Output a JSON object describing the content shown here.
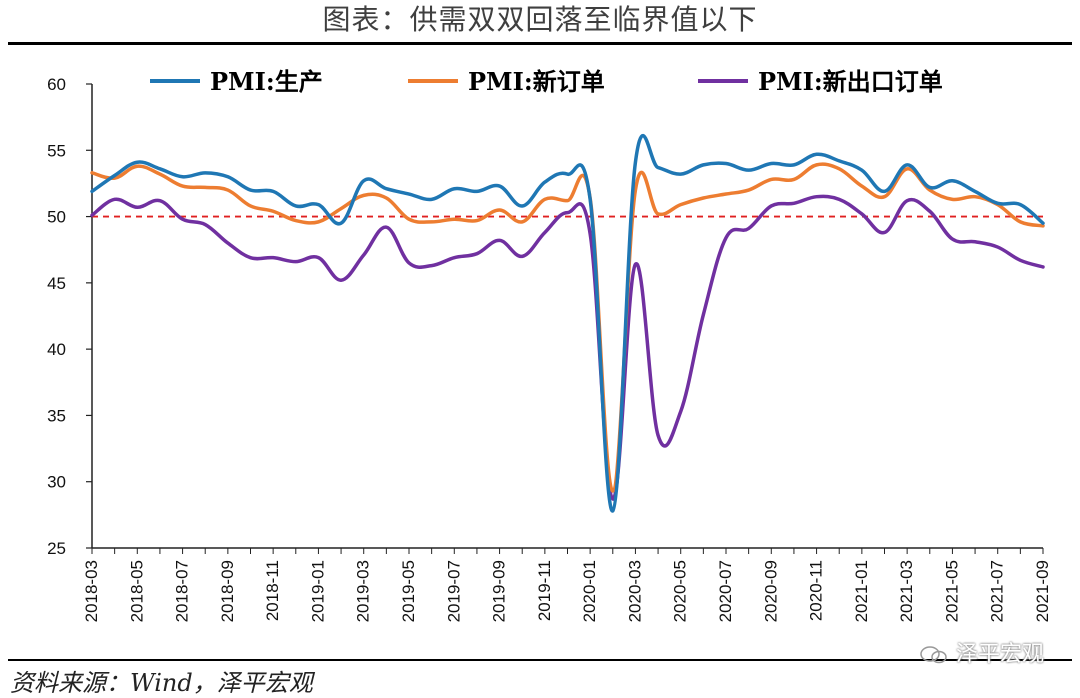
{
  "title": "图表：供需双双回落至临界值以下",
  "source": "资料来源：Wind，泽平宏观",
  "watermark": "泽平宏观",
  "chart_data": {
    "type": "line",
    "ylim": [
      25,
      60
    ],
    "yticks": [
      25,
      30,
      35,
      40,
      45,
      50,
      55,
      60
    ],
    "xtick_labels": [
      "2018-03",
      "2018-05",
      "2018-07",
      "2018-09",
      "2018-11",
      "2019-01",
      "2019-03",
      "2019-05",
      "2019-07",
      "2019-09",
      "2019-11",
      "2020-01",
      "2020-03",
      "2020-05",
      "2020-07",
      "2020-09",
      "2020-11",
      "2021-01",
      "2021-03",
      "2021-05",
      "2021-07",
      "2021-09"
    ],
    "x": [
      "2018-03",
      "2018-04",
      "2018-05",
      "2018-06",
      "2018-07",
      "2018-08",
      "2018-09",
      "2018-10",
      "2018-11",
      "2018-12",
      "2019-01",
      "2019-02",
      "2019-03",
      "2019-04",
      "2019-05",
      "2019-06",
      "2019-07",
      "2019-08",
      "2019-09",
      "2019-10",
      "2019-11",
      "2019-12",
      "2020-01",
      "2020-02",
      "2020-03",
      "2020-04",
      "2020-05",
      "2020-06",
      "2020-07",
      "2020-08",
      "2020-09",
      "2020-10",
      "2020-11",
      "2020-12",
      "2021-01",
      "2021-02",
      "2021-03",
      "2021-04",
      "2021-05",
      "2021-06",
      "2021-07",
      "2021-08",
      "2021-09"
    ],
    "reference_line": 50,
    "series": [
      {
        "name": "PMI:生产",
        "color": "#1f77b4",
        "values": [
          51.9,
          53.1,
          54.1,
          53.6,
          53.0,
          53.3,
          53.0,
          52.0,
          51.9,
          50.8,
          50.9,
          49.5,
          52.7,
          52.1,
          51.7,
          51.3,
          52.1,
          51.9,
          52.3,
          50.8,
          52.6,
          53.2,
          51.3,
          27.8,
          54.1,
          53.7,
          53.2,
          53.9,
          54.0,
          53.5,
          54.0,
          53.9,
          54.7,
          54.2,
          53.5,
          51.9,
          53.9,
          52.2,
          52.7,
          51.9,
          51.0,
          50.9,
          49.5
        ]
      },
      {
        "name": "PMI:新订单",
        "color": "#ed7d31",
        "values": [
          53.3,
          52.9,
          53.8,
          53.2,
          52.3,
          52.2,
          52.0,
          50.8,
          50.4,
          49.7,
          49.6,
          50.6,
          51.6,
          51.4,
          49.8,
          49.6,
          49.8,
          49.7,
          50.5,
          49.6,
          51.3,
          51.2,
          51.4,
          29.3,
          52.0,
          50.2,
          50.9,
          51.4,
          51.7,
          52.0,
          52.8,
          52.8,
          53.9,
          53.6,
          52.3,
          51.5,
          53.6,
          52.0,
          51.3,
          51.5,
          50.9,
          49.6,
          49.3
        ]
      },
      {
        "name": "PMI:新出口订单",
        "color": "#7030a0",
        "values": [
          50.1,
          51.3,
          50.7,
          51.2,
          49.8,
          49.4,
          48.0,
          46.9,
          46.9,
          46.6,
          46.9,
          45.2,
          47.1,
          49.2,
          46.5,
          46.3,
          46.9,
          47.2,
          48.2,
          47.0,
          48.8,
          50.3,
          48.7,
          28.7,
          46.4,
          33.5,
          35.3,
          42.6,
          48.4,
          49.1,
          50.8,
          51.0,
          51.5,
          51.3,
          50.2,
          48.8,
          51.2,
          50.4,
          48.3,
          48.1,
          47.7,
          46.7,
          46.2
        ]
      }
    ],
    "legend_position": "top"
  }
}
